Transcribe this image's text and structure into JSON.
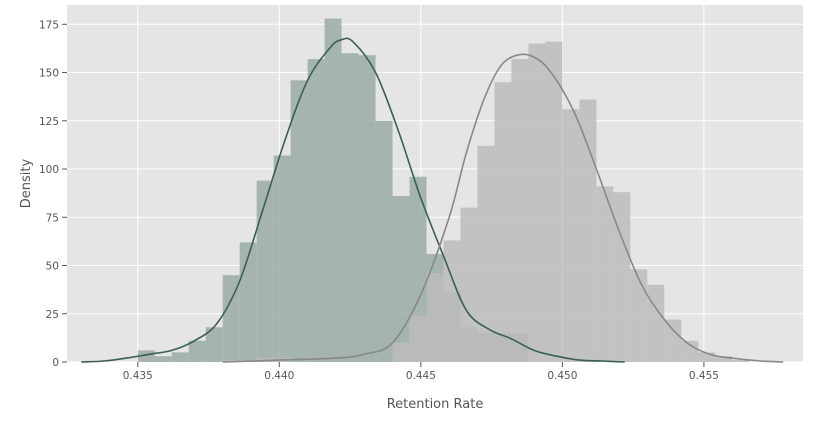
{
  "chart_data": {
    "type": "histogram",
    "title": "",
    "xlabel": "Retention Rate",
    "ylabel": "Density",
    "xlim": [
      0.4325,
      0.4585
    ],
    "ylim": [
      0,
      185
    ],
    "xticks": [
      0.435,
      0.44,
      0.445,
      0.45,
      0.455
    ],
    "xtick_labels": [
      "0.435",
      "0.440",
      "0.445",
      "0.450",
      "0.455"
    ],
    "yticks": [
      0,
      25,
      50,
      75,
      100,
      125,
      150,
      175
    ],
    "ytick_labels": [
      "0",
      "25",
      "50",
      "75",
      "100",
      "125",
      "150",
      "175"
    ],
    "grid": true,
    "background": "#e5e5e5",
    "gridColor": "#ffffff",
    "series": [
      {
        "color": "#3b5e5a",
        "barColor": "#9aaba6",
        "bins": [
          {
            "x0": 0.435,
            "x1": 0.4356,
            "y": 6
          },
          {
            "x0": 0.4356,
            "x1": 0.4362,
            "y": 3
          },
          {
            "x0": 0.4362,
            "x1": 0.4368,
            "y": 5
          },
          {
            "x0": 0.4368,
            "x1": 0.4374,
            "y": 11
          },
          {
            "x0": 0.4374,
            "x1": 0.438,
            "y": 18
          },
          {
            "x0": 0.438,
            "x1": 0.4386,
            "y": 45
          },
          {
            "x0": 0.4386,
            "x1": 0.4392,
            "y": 62
          },
          {
            "x0": 0.4392,
            "x1": 0.4398,
            "y": 94
          },
          {
            "x0": 0.4398,
            "x1": 0.4404,
            "y": 107
          },
          {
            "x0": 0.4404,
            "x1": 0.441,
            "y": 146
          },
          {
            "x0": 0.441,
            "x1": 0.4416,
            "y": 157
          },
          {
            "x0": 0.4416,
            "x1": 0.4422,
            "y": 178
          },
          {
            "x0": 0.4422,
            "x1": 0.4428,
            "y": 160
          },
          {
            "x0": 0.4428,
            "x1": 0.4434,
            "y": 159
          },
          {
            "x0": 0.4434,
            "x1": 0.444,
            "y": 125
          },
          {
            "x0": 0.444,
            "x1": 0.4446,
            "y": 86
          },
          {
            "x0": 0.4446,
            "x1": 0.4452,
            "y": 96
          },
          {
            "x0": 0.4452,
            "x1": 0.4458,
            "y": 56
          },
          {
            "x0": 0.4458,
            "x1": 0.4464,
            "y": 36
          },
          {
            "x0": 0.4464,
            "x1": 0.447,
            "y": 18
          },
          {
            "x0": 0.447,
            "x1": 0.4476,
            "y": 15
          },
          {
            "x0": 0.4476,
            "x1": 0.4482,
            "y": 15
          },
          {
            "x0": 0.4482,
            "x1": 0.4488,
            "y": 15
          }
        ],
        "kde": [
          [
            0.433,
            0
          ],
          [
            0.4338,
            0.5
          ],
          [
            0.4346,
            2
          ],
          [
            0.4354,
            4
          ],
          [
            0.4362,
            6
          ],
          [
            0.437,
            11
          ],
          [
            0.4378,
            20
          ],
          [
            0.4386,
            42
          ],
          [
            0.4394,
            78
          ],
          [
            0.4402,
            115
          ],
          [
            0.441,
            146
          ],
          [
            0.4418,
            163
          ],
          [
            0.4422,
            167
          ],
          [
            0.4426,
            166
          ],
          [
            0.4434,
            150
          ],
          [
            0.4442,
            120
          ],
          [
            0.445,
            85
          ],
          [
            0.4458,
            55
          ],
          [
            0.4466,
            27
          ],
          [
            0.4474,
            17
          ],
          [
            0.4482,
            12
          ],
          [
            0.449,
            6
          ],
          [
            0.4498,
            3
          ],
          [
            0.4506,
            1
          ],
          [
            0.4514,
            0.5
          ],
          [
            0.4522,
            0
          ]
        ]
      },
      {
        "color": "#888888",
        "barColor": "#bcbcbc",
        "bins": [
          {
            "x0": 0.438,
            "x1": 0.4392,
            "y": 1
          },
          {
            "x0": 0.4392,
            "x1": 0.4404,
            "y": 2
          },
          {
            "x0": 0.444,
            "x1": 0.4446,
            "y": 10
          },
          {
            "x0": 0.4446,
            "x1": 0.4452,
            "y": 24
          },
          {
            "x0": 0.4452,
            "x1": 0.4458,
            "y": 46
          },
          {
            "x0": 0.4458,
            "x1": 0.4464,
            "y": 63
          },
          {
            "x0": 0.4464,
            "x1": 0.447,
            "y": 80
          },
          {
            "x0": 0.447,
            "x1": 0.4476,
            "y": 112
          },
          {
            "x0": 0.4476,
            "x1": 0.4482,
            "y": 145
          },
          {
            "x0": 0.4482,
            "x1": 0.4488,
            "y": 157
          },
          {
            "x0": 0.4488,
            "x1": 0.4494,
            "y": 165
          },
          {
            "x0": 0.4494,
            "x1": 0.45,
            "y": 166
          },
          {
            "x0": 0.45,
            "x1": 0.4506,
            "y": 131
          },
          {
            "x0": 0.4506,
            "x1": 0.4512,
            "y": 136
          },
          {
            "x0": 0.4512,
            "x1": 0.4518,
            "y": 91
          },
          {
            "x0": 0.4518,
            "x1": 0.4524,
            "y": 88
          },
          {
            "x0": 0.4524,
            "x1": 0.453,
            "y": 48
          },
          {
            "x0": 0.453,
            "x1": 0.4536,
            "y": 40
          },
          {
            "x0": 0.4536,
            "x1": 0.4542,
            "y": 22
          },
          {
            "x0": 0.4542,
            "x1": 0.4548,
            "y": 11
          },
          {
            "x0": 0.4548,
            "x1": 0.4554,
            "y": 5
          },
          {
            "x0": 0.4554,
            "x1": 0.456,
            "y": 3
          },
          {
            "x0": 0.456,
            "x1": 0.4566,
            "y": 1
          }
        ],
        "kde": [
          [
            0.438,
            0
          ],
          [
            0.44,
            1
          ],
          [
            0.442,
            2
          ],
          [
            0.443,
            4
          ],
          [
            0.444,
            10
          ],
          [
            0.445,
            35
          ],
          [
            0.446,
            75
          ],
          [
            0.4466,
            108
          ],
          [
            0.4472,
            135
          ],
          [
            0.4478,
            153
          ],
          [
            0.4484,
            159
          ],
          [
            0.449,
            158
          ],
          [
            0.4496,
            150
          ],
          [
            0.4504,
            130
          ],
          [
            0.4512,
            100
          ],
          [
            0.452,
            68
          ],
          [
            0.4528,
            40
          ],
          [
            0.4536,
            22
          ],
          [
            0.4544,
            10
          ],
          [
            0.4552,
            4
          ],
          [
            0.456,
            2
          ],
          [
            0.457,
            0.5
          ],
          [
            0.4578,
            0
          ]
        ]
      }
    ]
  }
}
